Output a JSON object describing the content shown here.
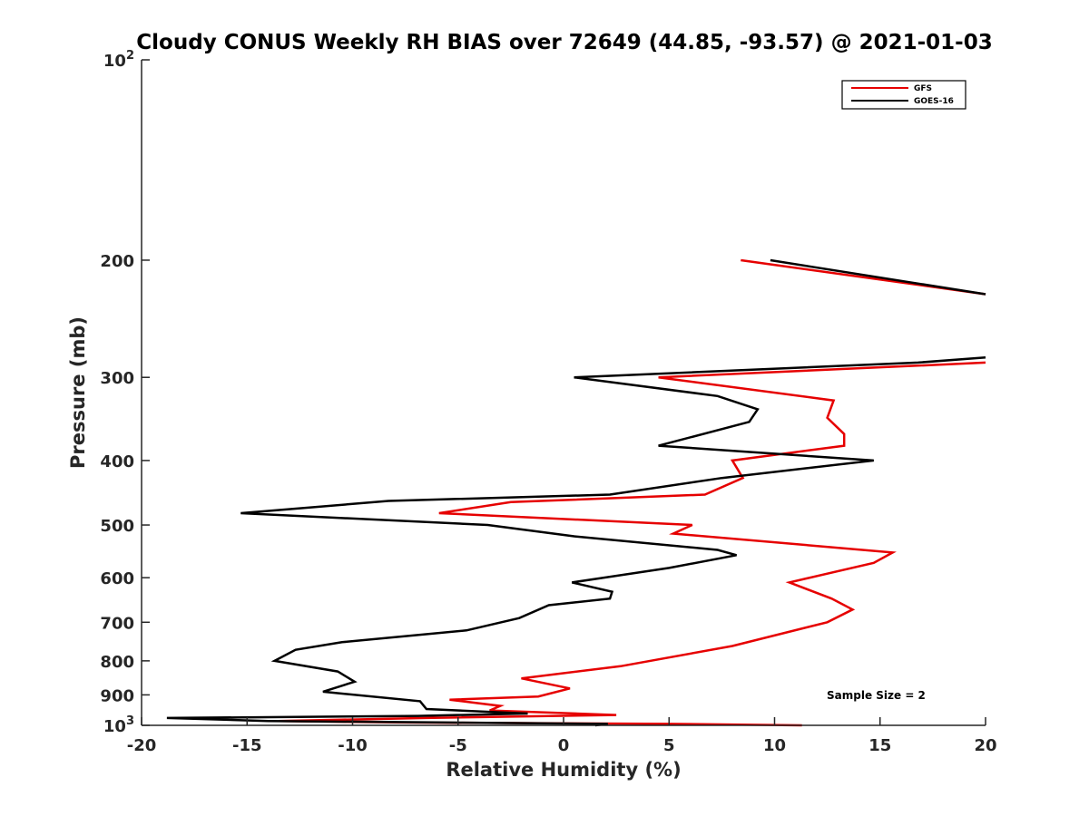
{
  "chart_data": {
    "type": "line",
    "title": "Cloudy CONUS Weekly RH BIAS over 72649 (44.85, -93.57) @ 2021-01-03",
    "xlabel": "Relative Humidity (%)",
    "ylabel": "Pressure (mb)",
    "xlim": [
      -20,
      20
    ],
    "ylim": [
      100,
      1000
    ],
    "y_scale": "log",
    "y_reversed": true,
    "x_ticks": [
      "-20",
      "-15",
      "-10",
      "-5",
      "0",
      "5",
      "10",
      "15",
      "20"
    ],
    "y_ticks": [
      {
        "value": 100,
        "base": "10",
        "exp": "2"
      },
      {
        "value": 200,
        "label": "200"
      },
      {
        "value": 300,
        "label": "300"
      },
      {
        "value": 400,
        "label": "400"
      },
      {
        "value": 500,
        "label": "500"
      },
      {
        "value": 600,
        "label": "600"
      },
      {
        "value": 700,
        "label": "700"
      },
      {
        "value": 800,
        "label": "800"
      },
      {
        "value": 900,
        "label": "900"
      },
      {
        "value": 1000,
        "base": "10",
        "exp": "3"
      }
    ],
    "grid": false,
    "legend_position": "top-right",
    "annotation": "Sample Size = 2",
    "series": [
      {
        "name": "GFS",
        "color": "#e60000",
        "segments": [
          [
            [
              8.4,
              200
            ],
            [
              20.0,
              225
            ]
          ],
          [
            [
              20.0,
              285
            ],
            [
              4.5,
              300
            ],
            [
              12.8,
              325
            ],
            [
              12.5,
              345
            ],
            [
              13.3,
              365
            ],
            [
              13.3,
              380
            ],
            [
              8.0,
              400
            ],
            [
              8.5,
              425
            ],
            [
              6.7,
              450
            ],
            [
              -2.5,
              462
            ],
            [
              -5.9,
              480
            ],
            [
              6.1,
              500
            ],
            [
              5.2,
              515
            ],
            [
              15.6,
              550
            ],
            [
              14.7,
              570
            ],
            [
              10.7,
              610
            ],
            [
              12.7,
              645
            ],
            [
              13.7,
              670
            ],
            [
              12.5,
              700
            ],
            [
              8.0,
              760
            ],
            [
              2.7,
              815
            ],
            [
              -2.0,
              850
            ],
            [
              0.3,
              880
            ],
            [
              -1.2,
              905
            ],
            [
              -5.4,
              915
            ],
            [
              -3.0,
              935
            ],
            [
              -3.5,
              950
            ],
            [
              2.5,
              965
            ],
            [
              -6.5,
              975
            ],
            [
              -13.5,
              985
            ],
            [
              -8.0,
              990
            ],
            [
              5.0,
              995
            ],
            [
              11.3,
              1000
            ]
          ]
        ]
      },
      {
        "name": "GOES-16",
        "color": "#000000",
        "segments": [
          [
            [
              9.8,
              200
            ],
            [
              20.0,
              225
            ]
          ],
          [
            [
              20.0,
              280
            ],
            [
              16.8,
              285
            ],
            [
              0.5,
              300
            ],
            [
              7.3,
              320
            ],
            [
              9.2,
              335
            ],
            [
              8.8,
              350
            ],
            [
              4.5,
              380
            ],
            [
              14.7,
              400
            ],
            [
              7.5,
              425
            ],
            [
              2.2,
              450
            ],
            [
              -8.3,
              460
            ],
            [
              -15.3,
              480
            ],
            [
              -3.6,
              500
            ],
            [
              0.5,
              520
            ],
            [
              7.3,
              545
            ],
            [
              8.2,
              555
            ],
            [
              5.0,
              580
            ],
            [
              0.4,
              610
            ],
            [
              2.3,
              630
            ],
            [
              2.2,
              645
            ],
            [
              -0.7,
              660
            ],
            [
              -2.1,
              690
            ],
            [
              -4.6,
              720
            ],
            [
              -10.5,
              750
            ],
            [
              -12.7,
              770
            ],
            [
              -13.7,
              800
            ],
            [
              -10.7,
              830
            ],
            [
              -9.9,
              860
            ],
            [
              -11.4,
              890
            ],
            [
              -6.8,
              920
            ],
            [
              -6.5,
              945
            ],
            [
              -1.7,
              960
            ],
            [
              -6.9,
              968
            ],
            [
              -18.8,
              975
            ],
            [
              -14.0,
              985
            ],
            [
              2.1,
              995
            ],
            [
              1.5,
              1000
            ]
          ]
        ]
      }
    ]
  }
}
